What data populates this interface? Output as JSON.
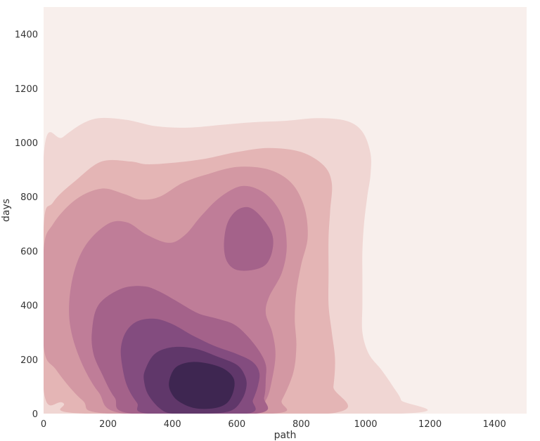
{
  "chart_data": {
    "type": "contour",
    "title": "",
    "xlabel": "path",
    "ylabel": "days",
    "xlim": [
      0,
      1500
    ],
    "ylim": [
      0,
      1500
    ],
    "xticks": [
      0,
      200,
      400,
      600,
      800,
      1000,
      1200,
      1400
    ],
    "yticks": [
      0,
      200,
      400,
      600,
      800,
      1000,
      1200,
      1400
    ],
    "xtick_labels": [
      "0",
      "200",
      "400",
      "600",
      "800",
      "1000",
      "1200",
      "1400"
    ],
    "ytick_labels": [
      "0",
      "200",
      "400",
      "600",
      "800",
      "1000",
      "1200",
      "1400"
    ],
    "grid": false,
    "levels": [
      {
        "level": 1,
        "color": "#f0d6d3",
        "points": [
          [
            0,
            0
          ],
          [
            0,
            945
          ],
          [
            60,
            1020
          ],
          [
            150,
            1085
          ],
          [
            250,
            1085
          ],
          [
            350,
            1060
          ],
          [
            450,
            1055
          ],
          [
            550,
            1065
          ],
          [
            650,
            1075
          ],
          [
            750,
            1080
          ],
          [
            850,
            1090
          ],
          [
            940,
            1080
          ],
          [
            990,
            1040
          ],
          [
            1015,
            960
          ],
          [
            1015,
            880
          ],
          [
            1005,
            800
          ],
          [
            995,
            700
          ],
          [
            990,
            600
          ],
          [
            990,
            500
          ],
          [
            990,
            400
          ],
          [
            990,
            300
          ],
          [
            1010,
            220
          ],
          [
            1050,
            160
          ],
          [
            1085,
            100
          ],
          [
            1110,
            50
          ],
          [
            1110,
            0
          ]
        ]
      },
      {
        "level": 2,
        "color": "#e4b5b5",
        "points": [
          [
            0,
            90
          ],
          [
            0,
            680
          ],
          [
            30,
            780
          ],
          [
            100,
            860
          ],
          [
            180,
            930
          ],
          [
            270,
            930
          ],
          [
            320,
            920
          ],
          [
            400,
            925
          ],
          [
            500,
            940
          ],
          [
            600,
            965
          ],
          [
            700,
            980
          ],
          [
            800,
            965
          ],
          [
            870,
            915
          ],
          [
            895,
            850
          ],
          [
            890,
            750
          ],
          [
            885,
            650
          ],
          [
            885,
            520
          ],
          [
            885,
            400
          ],
          [
            895,
            300
          ],
          [
            905,
            200
          ],
          [
            900,
            100
          ],
          [
            885,
            0
          ],
          [
            130,
            0
          ],
          [
            60,
            40
          ]
        ]
      },
      {
        "level": 3,
        "color": "#d398a3",
        "points": [
          [
            0,
            250
          ],
          [
            0,
            600
          ],
          [
            30,
            700
          ],
          [
            100,
            790
          ],
          [
            180,
            830
          ],
          [
            250,
            810
          ],
          [
            300,
            790
          ],
          [
            360,
            800
          ],
          [
            430,
            850
          ],
          [
            500,
            880
          ],
          [
            600,
            910
          ],
          [
            700,
            900
          ],
          [
            770,
            850
          ],
          [
            810,
            760
          ],
          [
            820,
            650
          ],
          [
            800,
            550
          ],
          [
            785,
            450
          ],
          [
            780,
            350
          ],
          [
            785,
            250
          ],
          [
            775,
            150
          ],
          [
            740,
            50
          ],
          [
            710,
            0
          ],
          [
            200,
            0
          ],
          [
            120,
            50
          ],
          [
            40,
            160
          ]
        ]
      },
      {
        "level": 4,
        "color": "#bf7d98",
        "points": [
          [
            80,
            350
          ],
          [
            90,
            500
          ],
          [
            130,
            620
          ],
          [
            200,
            700
          ],
          [
            260,
            705
          ],
          [
            320,
            660
          ],
          [
            390,
            630
          ],
          [
            440,
            660
          ],
          [
            490,
            730
          ],
          [
            550,
            800
          ],
          [
            620,
            840
          ],
          [
            690,
            810
          ],
          [
            740,
            730
          ],
          [
            755,
            620
          ],
          [
            740,
            520
          ],
          [
            700,
            430
          ],
          [
            690,
            370
          ],
          [
            710,
            300
          ],
          [
            720,
            220
          ],
          [
            710,
            130
          ],
          [
            690,
            50
          ],
          [
            640,
            0
          ],
          [
            250,
            0
          ],
          [
            170,
            80
          ],
          [
            110,
            210
          ]
        ]
      },
      {
        "level": 5,
        "color": "#a4628a",
        "points": [
          [
            150,
            300
          ],
          [
            170,
            400
          ],
          [
            240,
            460
          ],
          [
            310,
            470
          ],
          [
            360,
            450
          ],
          [
            420,
            410
          ],
          [
            480,
            370
          ],
          [
            540,
            350
          ],
          [
            590,
            330
          ],
          [
            630,
            290
          ],
          [
            670,
            230
          ],
          [
            690,
            180
          ],
          [
            690,
            130
          ],
          [
            685,
            60
          ],
          [
            660,
            0
          ],
          [
            275,
            0
          ],
          [
            220,
            60
          ],
          [
            180,
            150
          ],
          [
            155,
            220
          ]
        ]
      },
      {
        "level": 5,
        "color": "#a4628a",
        "points": [
          [
            560,
            620
          ],
          [
            570,
            700
          ],
          [
            600,
            750
          ],
          [
            640,
            760
          ],
          [
            680,
            720
          ],
          [
            710,
            660
          ],
          [
            710,
            600
          ],
          [
            690,
            550
          ],
          [
            650,
            530
          ],
          [
            600,
            530
          ],
          [
            570,
            560
          ]
        ]
      },
      {
        "level": 6,
        "color": "#834c7f",
        "points": [
          [
            240,
            240
          ],
          [
            255,
            300
          ],
          [
            290,
            340
          ],
          [
            345,
            350
          ],
          [
            400,
            330
          ],
          [
            460,
            290
          ],
          [
            530,
            250
          ],
          [
            600,
            220
          ],
          [
            650,
            190
          ],
          [
            670,
            150
          ],
          [
            665,
            100
          ],
          [
            650,
            50
          ],
          [
            630,
            0
          ],
          [
            325,
            0
          ],
          [
            290,
            40
          ],
          [
            260,
            100
          ],
          [
            245,
            170
          ]
        ]
      },
      {
        "level": 7,
        "color": "#60376a",
        "points": [
          [
            315,
            160
          ],
          [
            345,
            220
          ],
          [
            400,
            245
          ],
          [
            470,
            240
          ],
          [
            540,
            210
          ],
          [
            600,
            180
          ],
          [
            625,
            140
          ],
          [
            630,
            100
          ],
          [
            615,
            50
          ],
          [
            580,
            10
          ],
          [
            500,
            0
          ],
          [
            400,
            0
          ],
          [
            360,
            20
          ],
          [
            325,
            70
          ],
          [
            312,
            120
          ]
        ]
      },
      {
        "level": 8,
        "color": "#3e2651",
        "points": [
          [
            390,
            120
          ],
          [
            410,
            170
          ],
          [
            455,
            190
          ],
          [
            510,
            185
          ],
          [
            560,
            165
          ],
          [
            590,
            130
          ],
          [
            590,
            85
          ],
          [
            570,
            40
          ],
          [
            530,
            20
          ],
          [
            470,
            20
          ],
          [
            420,
            45
          ],
          [
            395,
            80
          ]
        ]
      }
    ]
  }
}
